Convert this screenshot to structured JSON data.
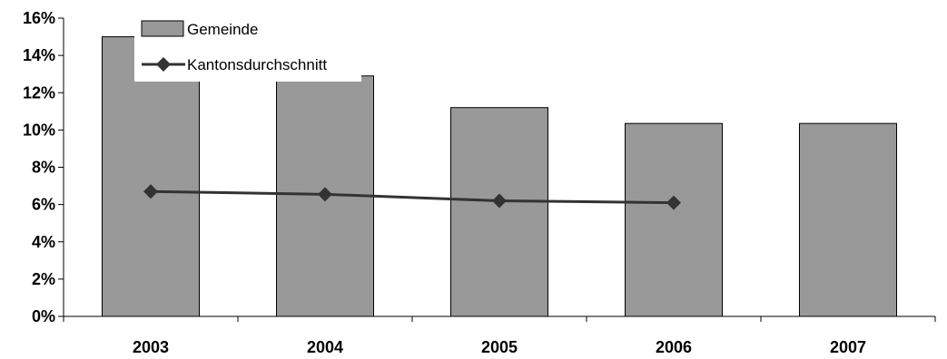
{
  "chart_data": {
    "type": "bar",
    "categories": [
      "2003",
      "2004",
      "2005",
      "2006",
      "2007"
    ],
    "series": [
      {
        "name": "Gemeinde",
        "kind": "bar",
        "values": [
          15.0,
          12.9,
          11.2,
          10.35,
          10.35
        ],
        "color": "#999999"
      },
      {
        "name": "Kantonsdurchschnitt",
        "kind": "line",
        "values": [
          6.7,
          6.55,
          6.2,
          6.1,
          null
        ],
        "color": "#333333",
        "marker": "diamond"
      }
    ],
    "y_tick_labels": [
      "0%",
      "2%",
      "4%",
      "6%",
      "8%",
      "10%",
      "12%",
      "14%",
      "16%"
    ],
    "ylim": [
      0,
      16
    ],
    "y_unit": "%",
    "title": "",
    "xlabel": "",
    "ylabel": "",
    "grid": false,
    "legend_position": "top-left"
  }
}
